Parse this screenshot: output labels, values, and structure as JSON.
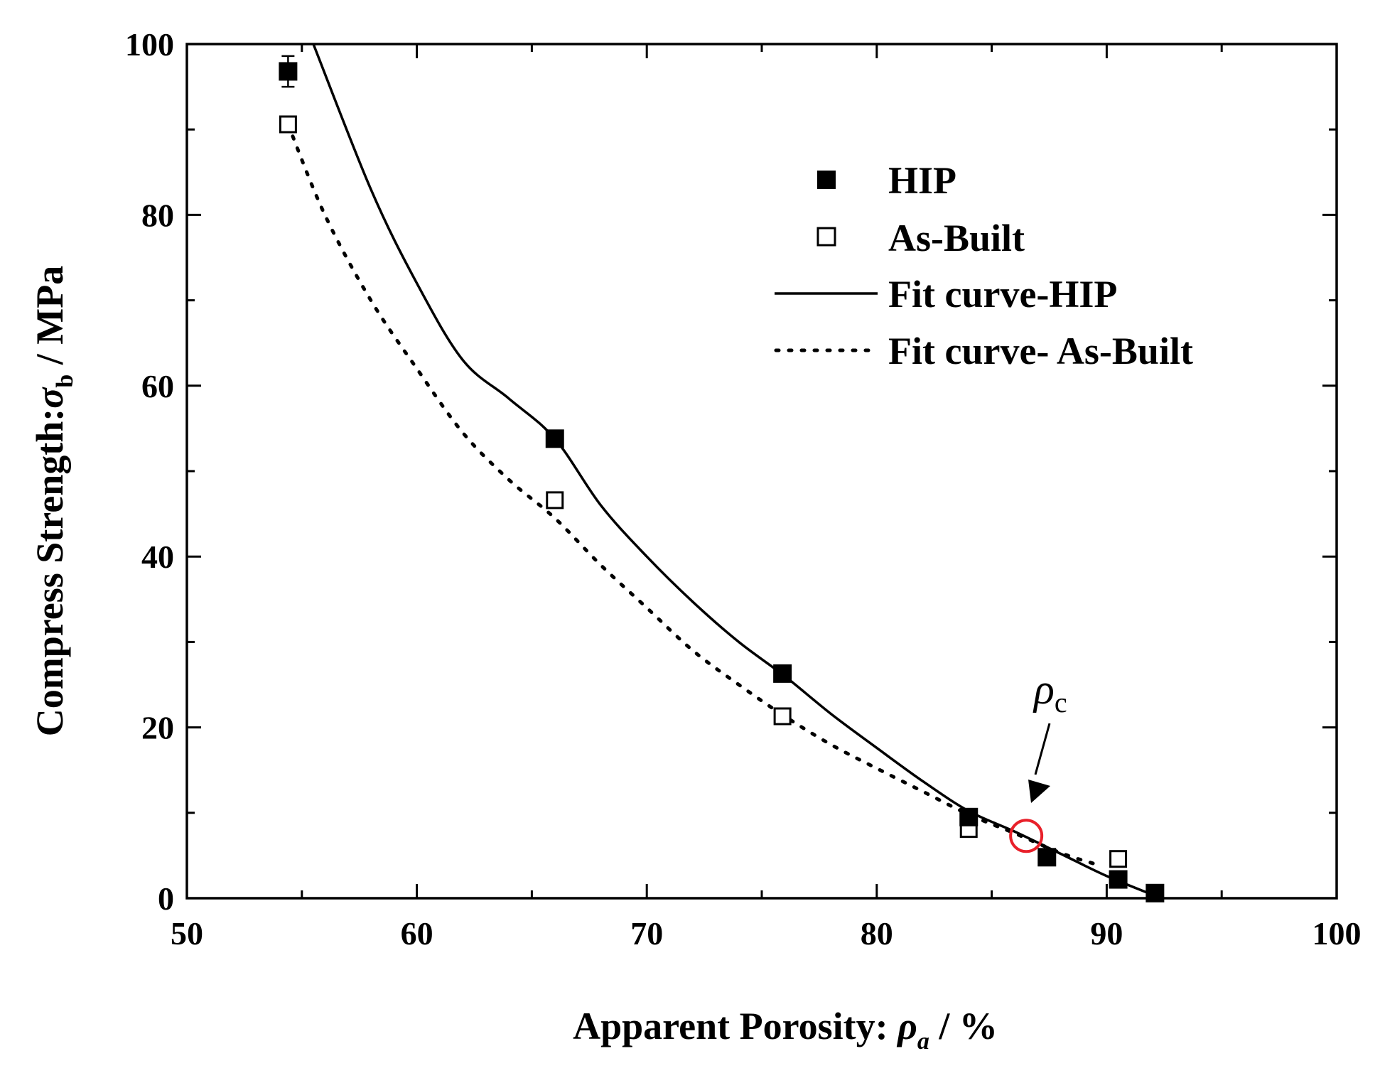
{
  "chart_data": {
    "type": "scatter",
    "xlabel": {
      "prefix": "Apparent Porosity: ",
      "symbol": "ρ",
      "subscript": "a",
      "suffix": " / %"
    },
    "ylabel": {
      "prefix": "Compress Strength:",
      "symbol": "σ",
      "subscript": "b",
      "suffix": " / MPa"
    },
    "xlim": [
      50,
      100
    ],
    "ylim": [
      0,
      100
    ],
    "x_ticks": [
      50,
      60,
      70,
      80,
      90,
      100
    ],
    "y_ticks": [
      0,
      20,
      40,
      60,
      80,
      100
    ],
    "x_tick_labels": [
      "50",
      "60",
      "70",
      "80",
      "90",
      "100"
    ],
    "y_tick_labels": [
      "0",
      "20",
      "40",
      "60",
      "80",
      "100"
    ],
    "x_minor_step": 5,
    "y_minor_step": 10,
    "legend_position": "top-right",
    "series": [
      {
        "name": "HIP",
        "marker": "filled-square",
        "x": [
          54.4,
          66.0,
          75.9,
          84.0,
          87.4,
          90.5,
          92.1
        ],
        "y": [
          96.8,
          53.8,
          26.3,
          9.5,
          4.8,
          2.2,
          0.6
        ],
        "error": [
          1.8,
          0,
          0,
          0,
          0,
          0,
          0
        ]
      },
      {
        "name": "As-Built",
        "marker": "open-square",
        "x": [
          54.4,
          66.0,
          75.9,
          84.0,
          90.5
        ],
        "y": [
          90.6,
          46.6,
          21.3,
          8.1,
          4.6
        ]
      },
      {
        "name": "Fit curve-HIP",
        "style": "solid",
        "x": [
          55.5,
          58,
          60,
          62,
          64,
          66,
          68,
          70,
          72,
          74,
          76,
          78,
          80,
          82,
          84,
          86,
          88,
          90,
          92
        ],
        "y": [
          100.0,
          83.0,
          72.0,
          63.0,
          58.5,
          53.8,
          46.0,
          40.0,
          34.7,
          30.0,
          26.0,
          21.6,
          17.6,
          13.7,
          10.2,
          7.8,
          5.2,
          2.6,
          0.4
        ]
      },
      {
        "name": "Fit curve- As-Built",
        "style": "dotted",
        "x": [
          54.4,
          56,
          58,
          60,
          62,
          64,
          66,
          68,
          70,
          72,
          74,
          76,
          78,
          80,
          82,
          84,
          86,
          88,
          89.5
        ],
        "y": [
          90.6,
          80.0,
          70.0,
          62.0,
          54.5,
          49.0,
          44.5,
          39.0,
          34.0,
          29.0,
          25.0,
          21.3,
          18.0,
          15.2,
          12.5,
          9.8,
          7.6,
          5.3,
          4.0
        ]
      }
    ],
    "annotation": {
      "symbol": "ρ",
      "subscript": "c",
      "x": 86.5,
      "y": 7.3,
      "circle_color": "#e8202a"
    }
  }
}
